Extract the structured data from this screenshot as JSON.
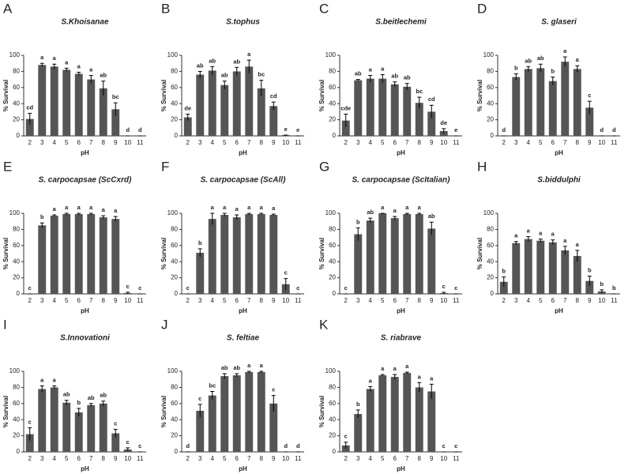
{
  "chart_data": [
    {
      "type": "bar",
      "label": "A",
      "title": "S.Khoisanae",
      "xlabel": "pH",
      "ylabel": "% Survival",
      "categories": [
        "2",
        "3",
        "4",
        "5",
        "6",
        "7",
        "8",
        "9",
        "10",
        "11"
      ],
      "values": [
        21,
        88,
        86,
        82,
        77,
        70,
        59,
        33,
        0,
        0
      ],
      "errors": [
        7,
        2,
        3,
        2,
        2,
        5,
        9,
        8,
        0,
        0
      ],
      "annotations": [
        "cd",
        "a",
        "a",
        "a",
        "a",
        "a",
        "ab",
        "bc",
        "d",
        "d"
      ],
      "ylim": [
        0,
        100
      ],
      "yticks": [
        0,
        20,
        40,
        60,
        80,
        100
      ],
      "color": "#555555"
    },
    {
      "type": "bar",
      "label": "B",
      "title": "S.tophus",
      "xlabel": "pH",
      "ylabel": "% Survival",
      "categories": [
        "2",
        "3",
        "4",
        "5",
        "6",
        "7",
        "8",
        "9",
        "10",
        "11"
      ],
      "values": [
        23,
        76,
        81,
        63,
        80,
        86,
        59,
        37,
        1,
        0
      ],
      "errors": [
        4,
        4,
        5,
        5,
        5,
        8,
        10,
        5,
        0,
        0
      ],
      "annotations": [
        "de",
        "ab",
        "ab",
        "ab",
        "ab",
        "a",
        "bc",
        "cd",
        "e",
        "e"
      ],
      "ylim": [
        0,
        100
      ],
      "yticks": [
        0,
        20,
        40,
        60,
        80,
        100
      ],
      "color": "#555555"
    },
    {
      "type": "bar",
      "label": "C",
      "title": "S.beitlechemi",
      "xlabel": "pH",
      "ylabel": "% Survival",
      "categories": [
        "2",
        "3",
        "4",
        "5",
        "6",
        "7",
        "8",
        "9",
        "10",
        "11"
      ],
      "values": [
        19,
        69,
        71,
        71,
        64,
        61,
        41,
        30,
        6,
        0
      ],
      "errors": [
        8,
        1,
        4,
        5,
        3,
        4,
        7,
        8,
        3,
        0
      ],
      "annotations": [
        "cde",
        "ab",
        "a",
        "a",
        "ab",
        "ab",
        "bc",
        "cd",
        "de",
        "e"
      ],
      "ylim": [
        0,
        100
      ],
      "yticks": [
        0,
        20,
        40,
        60,
        80,
        100
      ],
      "color": "#555555"
    },
    {
      "type": "bar",
      "label": "D",
      "title": "S. glaseri",
      "xlabel": "pH",
      "ylabel": "% Survival",
      "categories": [
        "2",
        "3",
        "4",
        "5",
        "6",
        "7",
        "8",
        "9",
        "10",
        "11"
      ],
      "values": [
        0,
        73,
        83,
        84,
        68,
        92,
        83,
        35,
        0,
        0
      ],
      "errors": [
        0,
        4,
        3,
        5,
        5,
        6,
        4,
        8,
        0,
        0
      ],
      "annotations": [
        "d",
        "b",
        "ab",
        "ab",
        "b",
        "a",
        "a",
        "c",
        "d",
        "d"
      ],
      "ylim": [
        0,
        100
      ],
      "yticks": [
        0,
        20,
        40,
        60,
        80,
        100
      ],
      "color": "#555555"
    },
    {
      "type": "bar",
      "label": "E",
      "title": "S. carpocapsae (ScCxrd)",
      "xlabel": "pH",
      "ylabel": "% Survival",
      "categories": [
        "2",
        "3",
        "4",
        "5",
        "6",
        "7",
        "8",
        "9",
        "10",
        "11"
      ],
      "values": [
        0,
        85,
        97,
        99,
        99,
        99,
        95,
        93,
        1,
        0
      ],
      "errors": [
        0,
        3,
        1,
        1,
        1,
        1,
        2,
        3,
        1,
        0
      ],
      "annotations": [
        "c",
        "b",
        "a",
        "a",
        "a",
        "a",
        "a",
        "a",
        "c",
        "c"
      ],
      "ylim": [
        0,
        100
      ],
      "yticks": [
        0,
        20,
        40,
        60,
        80,
        100
      ],
      "color": "#555555"
    },
    {
      "type": "bar",
      "label": "F",
      "title": "S. carpocapsae (ScAll)",
      "xlabel": "pH",
      "ylabel": "% Survival",
      "categories": [
        "2",
        "3",
        "4",
        "5",
        "6",
        "7",
        "8",
        "9",
        "10",
        "11"
      ],
      "values": [
        0,
        51,
        93,
        98,
        95,
        99,
        99,
        98,
        12,
        0
      ],
      "errors": [
        0,
        5,
        7,
        2,
        3,
        1,
        1,
        1,
        7,
        0
      ],
      "annotations": [
        "c",
        "b",
        "a",
        "a",
        "a",
        "a",
        "a",
        "a",
        "c",
        "c"
      ],
      "ylim": [
        0,
        100
      ],
      "yticks": [
        0,
        20,
        40,
        60,
        80,
        100
      ],
      "color": "#555555"
    },
    {
      "type": "bar",
      "label": "G",
      "title": "S. carpocapsae (ScItalian)",
      "xlabel": "pH",
      "ylabel": "% Survival",
      "categories": [
        "2",
        "3",
        "4",
        "5",
        "6",
        "7",
        "8",
        "9",
        "10",
        "11"
      ],
      "values": [
        0,
        74,
        91,
        100,
        94,
        99,
        99,
        81,
        1,
        0
      ],
      "errors": [
        0,
        8,
        3,
        0,
        2,
        1,
        1,
        8,
        1,
        0
      ],
      "annotations": [
        "c",
        "b",
        "ab",
        "a",
        "a",
        "a",
        "a",
        "ab",
        "c",
        "c"
      ],
      "ylim": [
        0,
        100
      ],
      "yticks": [
        0,
        20,
        40,
        60,
        80,
        100
      ],
      "color": "#555555"
    },
    {
      "type": "bar",
      "label": "H",
      "title": "S.biddulphi",
      "xlabel": "pH",
      "ylabel": "% Survival",
      "categories": [
        "2",
        "3",
        "4",
        "5",
        "6",
        "7",
        "8",
        "9",
        "10",
        "11"
      ],
      "values": [
        15,
        63,
        68,
        66,
        64,
        54,
        47,
        16,
        3,
        0
      ],
      "errors": [
        6,
        2,
        3,
        2,
        3,
        5,
        7,
        6,
        2,
        0
      ],
      "annotations": [
        "b",
        "a",
        "a",
        "a",
        "a",
        "a",
        "a",
        "b",
        "b",
        "b"
      ],
      "ylim": [
        0,
        100
      ],
      "yticks": [
        0,
        20,
        40,
        60,
        80,
        100
      ],
      "color": "#555555"
    },
    {
      "type": "bar",
      "label": "I",
      "title": "S.Innovationi",
      "xlabel": "pH",
      "ylabel": "% Survival",
      "categories": [
        "2",
        "3",
        "4",
        "5",
        "6",
        "7",
        "8",
        "9",
        "10",
        "11"
      ],
      "values": [
        22,
        78,
        80,
        61,
        49,
        58,
        60,
        23,
        3,
        0
      ],
      "errors": [
        8,
        4,
        2,
        3,
        5,
        2,
        3,
        5,
        2,
        0
      ],
      "annotations": [
        "c",
        "a",
        "a",
        "ab",
        "b",
        "ab",
        "ab",
        "c",
        "c",
        "c"
      ],
      "ylim": [
        0,
        100
      ],
      "yticks": [
        0,
        20,
        40,
        60,
        80,
        100
      ],
      "color": "#555555"
    },
    {
      "type": "bar",
      "label": "J",
      "title": "S. feltiae",
      "xlabel": "pH",
      "ylabel": "% Survival",
      "categories": [
        "2",
        "3",
        "4",
        "5",
        "6",
        "7",
        "8",
        "9",
        "10",
        "11"
      ],
      "values": [
        0,
        51,
        70,
        94,
        95,
        99,
        99,
        60,
        0,
        0
      ],
      "errors": [
        0,
        8,
        5,
        3,
        2,
        1,
        1,
        10,
        0,
        0
      ],
      "annotations": [
        "d",
        "c",
        "bc",
        "ab",
        "ab",
        "a",
        "a",
        "c",
        "d",
        "d"
      ],
      "ylim": [
        0,
        100
      ],
      "yticks": [
        0,
        20,
        40,
        60,
        80,
        100
      ],
      "color": "#555555"
    },
    {
      "type": "bar",
      "label": "K",
      "title": "S. riabrave",
      "xlabel": "pH",
      "ylabel": "% Survival",
      "categories": [
        "2",
        "3",
        "4",
        "5",
        "6",
        "7",
        "8",
        "9",
        "10",
        "11"
      ],
      "values": [
        8,
        47,
        78,
        95,
        93,
        98,
        80,
        75,
        0,
        0
      ],
      "errors": [
        4,
        5,
        3,
        1,
        3,
        1,
        6,
        9,
        0,
        0
      ],
      "annotations": [
        "c",
        "b",
        "a",
        "a",
        "a",
        "a",
        "a",
        "a",
        "c",
        "c"
      ],
      "ylim": [
        0,
        100
      ],
      "yticks": [
        0,
        20,
        40,
        60,
        80,
        100
      ],
      "color": "#555555"
    }
  ]
}
